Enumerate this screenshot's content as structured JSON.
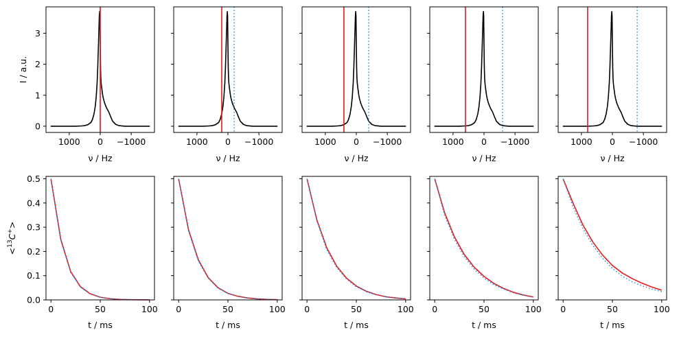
{
  "chart_data": {
    "type": "line",
    "layout": "2 rows x 5 columns, y-axis shared across each row",
    "top_row": {
      "xlabel": "ν / Hz",
      "ylabel": "I / a.u.",
      "xlim": [
        1750,
        -1750
      ],
      "ylim": [
        -0.2,
        3.85
      ],
      "xticks": [
        1000,
        0,
        -1000
      ],
      "xtick_labels": [
        "1000",
        "0",
        "−1000"
      ],
      "yticks": [
        0,
        1,
        2,
        3
      ],
      "ytick_labels": [
        "0",
        "1",
        "2",
        "3"
      ],
      "spectrum": {
        "color": "#000000",
        "x": [
          1600,
          1200,
          800,
          600,
          500,
          400,
          300,
          250,
          200,
          160,
          130,
          100,
          80,
          60,
          40,
          30,
          20,
          10,
          0,
          -10,
          -20,
          -30,
          -40,
          -60,
          -80,
          -100,
          -140,
          -200,
          -280,
          -340,
          -400,
          -500,
          -600,
          -800,
          -1000,
          -1200,
          -1600
        ],
        "y": [
          0.0,
          0.0,
          0.0,
          0.01,
          0.02,
          0.05,
          0.12,
          0.22,
          0.4,
          0.65,
          0.95,
          1.4,
          1.9,
          2.55,
          3.2,
          3.55,
          3.7,
          3.55,
          2.6,
          1.9,
          1.55,
          1.4,
          1.3,
          1.15,
          1.0,
          0.9,
          0.75,
          0.6,
          0.45,
          0.3,
          0.16,
          0.06,
          0.02,
          0.0,
          0.0,
          0.0,
          0.0
        ]
      },
      "panels": [
        {
          "red_solid_at_hz": 0,
          "blue_dotted_at_hz": 0
        },
        {
          "red_solid_at_hz": 200,
          "blue_dotted_at_hz": -200
        },
        {
          "red_solid_at_hz": 400,
          "blue_dotted_at_hz": -400
        },
        {
          "red_solid_at_hz": 600,
          "blue_dotted_at_hz": -600
        },
        {
          "red_solid_at_hz": 800,
          "blue_dotted_at_hz": -800
        }
      ]
    },
    "bottom_row": {
      "xlabel": "t / ms",
      "ylabel_prefix": "<",
      "ylabel_sup": "13",
      "ylabel_main": "C",
      "ylabel_sup2": "+",
      "ylabel_suffix": ">",
      "xlim": [
        -5,
        105
      ],
      "ylim": [
        0.0,
        0.51
      ],
      "xticks": [
        0,
        50,
        100
      ],
      "xtick_labels": [
        "0",
        "50",
        "100"
      ],
      "yticks": [
        0.0,
        0.1,
        0.2,
        0.3,
        0.4,
        0.5
      ],
      "ytick_labels": [
        "0.0",
        "0.1",
        "0.2",
        "0.3",
        "0.4",
        "0.5"
      ],
      "series_style": {
        "red": "#e41a1c",
        "blue_dotted": "#1f8fe0"
      },
      "panels": [
        {
          "t": [
            0,
            10,
            20,
            30,
            40,
            50,
            60,
            70,
            80,
            90,
            100
          ],
          "red": [
            0.5,
            0.25,
            0.117,
            0.054,
            0.025,
            0.011,
            0.005,
            0.002,
            0.001,
            0.0005,
            0.0002
          ],
          "blue": [
            0.5,
            0.245,
            0.114,
            0.052,
            0.024,
            0.011,
            0.005,
            0.002,
            0.001,
            0.0005,
            0.0002
          ]
        },
        {
          "t": [
            0,
            10,
            20,
            30,
            40,
            50,
            60,
            70,
            80,
            90,
            100
          ],
          "red": [
            0.5,
            0.29,
            0.165,
            0.092,
            0.05,
            0.027,
            0.015,
            0.008,
            0.004,
            0.002,
            0.001
          ],
          "blue": [
            0.5,
            0.285,
            0.16,
            0.089,
            0.048,
            0.026,
            0.014,
            0.007,
            0.004,
            0.002,
            0.001
          ]
        },
        {
          "t": [
            0,
            10,
            20,
            30,
            40,
            50,
            60,
            70,
            80,
            90,
            100
          ],
          "red": [
            0.5,
            0.33,
            0.215,
            0.14,
            0.09,
            0.057,
            0.036,
            0.022,
            0.013,
            0.008,
            0.004
          ],
          "blue": [
            0.5,
            0.325,
            0.208,
            0.134,
            0.086,
            0.054,
            0.034,
            0.021,
            0.013,
            0.008,
            0.004
          ]
        },
        {
          "t": [
            0,
            10,
            20,
            30,
            40,
            50,
            60,
            70,
            80,
            90,
            100
          ],
          "red": [
            0.5,
            0.36,
            0.26,
            0.187,
            0.135,
            0.097,
            0.068,
            0.047,
            0.031,
            0.02,
            0.012
          ],
          "blue": [
            0.5,
            0.35,
            0.25,
            0.178,
            0.127,
            0.09,
            0.063,
            0.044,
            0.029,
            0.019,
            0.011
          ]
        },
        {
          "t": [
            0,
            10,
            20,
            30,
            40,
            50,
            60,
            70,
            80,
            90,
            100
          ],
          "red": [
            0.5,
            0.4,
            0.31,
            0.24,
            0.185,
            0.142,
            0.111,
            0.088,
            0.069,
            0.053,
            0.04
          ],
          "blue": [
            0.5,
            0.385,
            0.296,
            0.226,
            0.172,
            0.13,
            0.098,
            0.075,
            0.058,
            0.045,
            0.034
          ]
        }
      ]
    }
  }
}
